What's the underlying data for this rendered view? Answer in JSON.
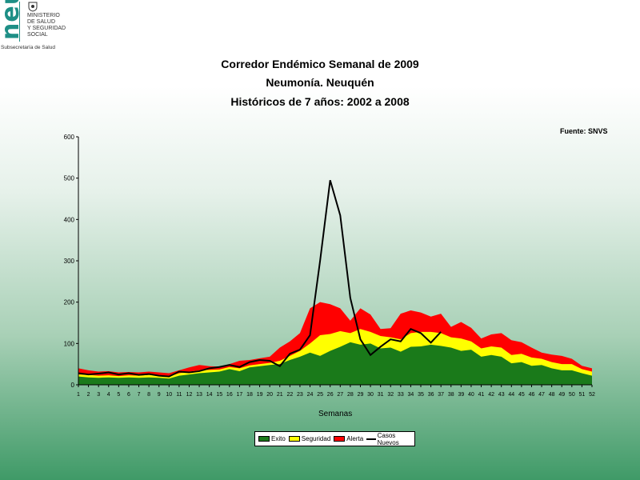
{
  "logo": {
    "mark": "neu",
    "lines": [
      "MINISTERIO",
      "DE SALUD",
      "Y SEGURIDAD",
      "SOCIAL"
    ],
    "subtitle": "Subsecretaría de Salud"
  },
  "colors": {
    "exito": "#1a7a1a",
    "seguridad": "#ffff00",
    "alerta": "#ff0000",
    "casos": "#000000"
  },
  "chart_data": {
    "type": "area",
    "title": "Corredor Endémico Semanal de 2009",
    "subtitle": "Neumonía.  Neuquén",
    "subtitle2": "Históricos de 7 años: 2002 a 2008",
    "source": "Fuente: SNVS",
    "xlabel": "Semanas",
    "ylabel": "",
    "ylim": [
      0,
      600
    ],
    "yticks": [
      0,
      100,
      200,
      300,
      400,
      500,
      600
    ],
    "x": [
      1,
      2,
      3,
      4,
      5,
      6,
      7,
      8,
      9,
      10,
      11,
      12,
      13,
      14,
      15,
      16,
      17,
      18,
      19,
      20,
      21,
      22,
      23,
      24,
      25,
      26,
      27,
      28,
      29,
      30,
      31,
      32,
      33,
      34,
      35,
      36,
      37,
      38,
      39,
      40,
      41,
      42,
      43,
      44,
      45,
      46,
      47,
      48,
      49,
      50,
      51,
      52
    ],
    "series": [
      {
        "name": "Exito",
        "kind": "area",
        "values": [
          20,
          18,
          17,
          18,
          17,
          18,
          17,
          18,
          17,
          15,
          22,
          25,
          28,
          30,
          32,
          38,
          33,
          42,
          45,
          48,
          50,
          60,
          68,
          78,
          70,
          82,
          92,
          103,
          97,
          100,
          88,
          90,
          80,
          92,
          93,
          97,
          94,
          90,
          82,
          85,
          68,
          72,
          68,
          52,
          55,
          46,
          48,
          40,
          35,
          35,
          28,
          22
        ]
      },
      {
        "name": "Seguridad",
        "kind": "area",
        "values": [
          25,
          24,
          22,
          23,
          21,
          23,
          22,
          24,
          22,
          20,
          28,
          32,
          35,
          36,
          37,
          43,
          40,
          47,
          50,
          53,
          58,
          70,
          82,
          100,
          120,
          123,
          130,
          125,
          135,
          128,
          118,
          115,
          110,
          125,
          128,
          128,
          125,
          115,
          112,
          105,
          88,
          93,
          90,
          72,
          75,
          66,
          63,
          55,
          50,
          50,
          38,
          32
        ]
      },
      {
        "name": "Alerta",
        "kind": "area",
        "values": [
          40,
          35,
          32,
          33,
          30,
          31,
          30,
          32,
          30,
          28,
          35,
          42,
          48,
          45,
          44,
          50,
          58,
          60,
          64,
          68,
          90,
          105,
          125,
          185,
          200,
          195,
          185,
          155,
          185,
          170,
          135,
          137,
          172,
          180,
          175,
          165,
          172,
          140,
          152,
          138,
          112,
          122,
          125,
          108,
          103,
          90,
          78,
          73,
          70,
          63,
          46,
          40
        ]
      },
      {
        "name": "Casos Nuevos",
        "kind": "line",
        "values": [
          28,
          25,
          27,
          30,
          25,
          28,
          24,
          26,
          22,
          20,
          32,
          30,
          33,
          40,
          43,
          48,
          43,
          55,
          60,
          58,
          45,
          75,
          85,
          120,
          300,
          495,
          410,
          210,
          110,
          72,
          92,
          110,
          105,
          135,
          125,
          102,
          128,
          null,
          null,
          null,
          null,
          null,
          null,
          null,
          null,
          null,
          null,
          null,
          null,
          null,
          null,
          null
        ]
      }
    ],
    "grid": false,
    "legend_position": "bottom"
  }
}
